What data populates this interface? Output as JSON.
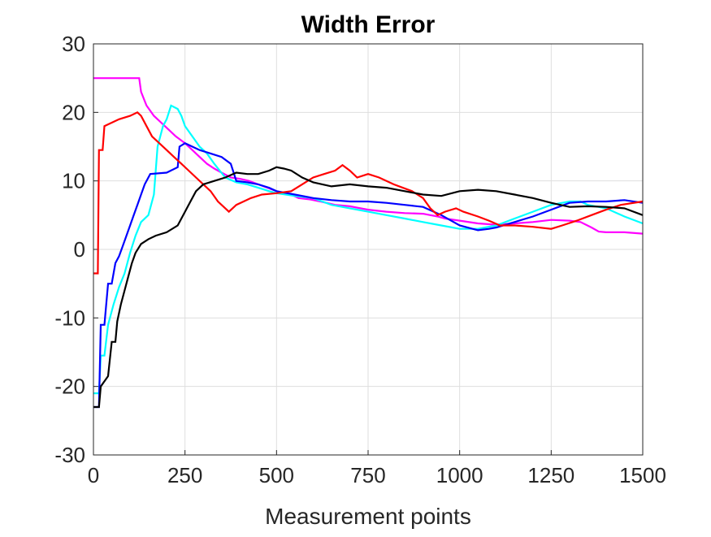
{
  "chart_data": {
    "type": "line",
    "title": "Width Error",
    "xlabel": "Measurement points",
    "ylabel": "",
    "xlim": [
      0,
      1500
    ],
    "ylim": [
      -30,
      30
    ],
    "xticks": [
      0,
      250,
      500,
      750,
      1000,
      1250,
      1500
    ],
    "yticks": [
      30,
      20,
      10,
      0,
      -10,
      -20,
      -30
    ],
    "xtick_labels": [
      "0",
      "250",
      "500",
      "750",
      "1000",
      "1250",
      "1500"
    ],
    "ytick_labels": [
      "30",
      "20",
      "10",
      "0",
      "-10",
      "-20",
      "-30"
    ],
    "grid": true,
    "legend": "none",
    "series": [
      {
        "color": "#ff00ff",
        "points": [
          [
            0,
            25
          ],
          [
            60,
            25
          ],
          [
            125,
            25
          ],
          [
            130,
            23
          ],
          [
            145,
            21
          ],
          [
            165,
            19.5
          ],
          [
            185,
            18.5
          ],
          [
            205,
            17.5
          ],
          [
            225,
            16.5
          ],
          [
            250,
            15.5
          ],
          [
            270,
            14.5
          ],
          [
            290,
            13.5
          ],
          [
            310,
            12.5
          ],
          [
            330,
            11.8
          ],
          [
            350,
            11.2
          ],
          [
            375,
            10.5
          ],
          [
            400,
            10.3
          ],
          [
            425,
            10
          ],
          [
            450,
            9.5
          ],
          [
            475,
            9
          ],
          [
            500,
            8.5
          ],
          [
            520,
            8.2
          ],
          [
            540,
            8
          ],
          [
            560,
            7.5
          ],
          [
            590,
            7.3
          ],
          [
            620,
            7
          ],
          [
            660,
            6.5
          ],
          [
            700,
            6.3
          ],
          [
            750,
            5.8
          ],
          [
            800,
            5.5
          ],
          [
            850,
            5.3
          ],
          [
            900,
            5.2
          ],
          [
            920,
            5
          ],
          [
            940,
            4.8
          ],
          [
            960,
            4.5
          ],
          [
            1000,
            4.2
          ],
          [
            1050,
            3.8
          ],
          [
            1100,
            3.6
          ],
          [
            1150,
            3.8
          ],
          [
            1200,
            4
          ],
          [
            1250,
            4.3
          ],
          [
            1300,
            4.2
          ],
          [
            1330,
            4
          ],
          [
            1360,
            3.2
          ],
          [
            1380,
            2.6
          ],
          [
            1400,
            2.5
          ],
          [
            1450,
            2.5
          ],
          [
            1500,
            2.3
          ]
        ]
      },
      {
        "color": "#00ffff",
        "points": [
          [
            0,
            -21
          ],
          [
            15,
            -21
          ],
          [
            20,
            -15.5
          ],
          [
            30,
            -15.5
          ],
          [
            40,
            -11
          ],
          [
            55,
            -8
          ],
          [
            70,
            -5.5
          ],
          [
            85,
            -3.5
          ],
          [
            100,
            -0.5
          ],
          [
            115,
            2
          ],
          [
            130,
            4
          ],
          [
            150,
            5
          ],
          [
            165,
            8
          ],
          [
            175,
            15
          ],
          [
            190,
            18
          ],
          [
            200,
            19
          ],
          [
            212,
            21
          ],
          [
            230,
            20.5
          ],
          [
            240,
            19.5
          ],
          [
            250,
            18
          ],
          [
            270,
            16.5
          ],
          [
            290,
            15
          ],
          [
            310,
            14
          ],
          [
            330,
            12.5
          ],
          [
            360,
            10.5
          ],
          [
            390,
            9.8
          ],
          [
            420,
            9.5
          ],
          [
            450,
            9
          ],
          [
            480,
            8.5
          ],
          [
            500,
            8.2
          ],
          [
            550,
            7.8
          ],
          [
            600,
            7.5
          ],
          [
            650,
            6.5
          ],
          [
            700,
            6
          ],
          [
            750,
            5.5
          ],
          [
            800,
            5
          ],
          [
            850,
            4.5
          ],
          [
            900,
            4
          ],
          [
            950,
            3.5
          ],
          [
            1000,
            3
          ],
          [
            1050,
            3
          ],
          [
            1100,
            3.5
          ],
          [
            1150,
            4.5
          ],
          [
            1200,
            5.5
          ],
          [
            1250,
            6.5
          ],
          [
            1300,
            7
          ],
          [
            1330,
            7
          ],
          [
            1350,
            6.5
          ],
          [
            1400,
            6
          ],
          [
            1450,
            4.8
          ],
          [
            1500,
            3.8
          ]
        ]
      },
      {
        "color": "#0000ff",
        "points": [
          [
            0,
            -23
          ],
          [
            15,
            -23
          ],
          [
            20,
            -11
          ],
          [
            30,
            -11
          ],
          [
            40,
            -5
          ],
          [
            50,
            -5
          ],
          [
            60,
            -2
          ],
          [
            70,
            -1
          ],
          [
            80,
            0.5
          ],
          [
            90,
            2
          ],
          [
            100,
            3.5
          ],
          [
            110,
            5
          ],
          [
            120,
            6.5
          ],
          [
            130,
            8
          ],
          [
            140,
            9.5
          ],
          [
            155,
            11
          ],
          [
            200,
            11.2
          ],
          [
            230,
            12
          ],
          [
            235,
            15
          ],
          [
            250,
            15.5
          ],
          [
            270,
            15
          ],
          [
            290,
            14.5
          ],
          [
            320,
            14
          ],
          [
            350,
            13.5
          ],
          [
            375,
            12.5
          ],
          [
            390,
            10
          ],
          [
            420,
            9.8
          ],
          [
            450,
            9.5
          ],
          [
            480,
            9
          ],
          [
            500,
            8.5
          ],
          [
            550,
            8
          ],
          [
            600,
            7.5
          ],
          [
            650,
            7.2
          ],
          [
            700,
            7
          ],
          [
            750,
            7
          ],
          [
            800,
            6.8
          ],
          [
            850,
            6.5
          ],
          [
            900,
            6.2
          ],
          [
            950,
            5
          ],
          [
            1000,
            3.5
          ],
          [
            1050,
            2.8
          ],
          [
            1080,
            3
          ],
          [
            1100,
            3.2
          ],
          [
            1150,
            4
          ],
          [
            1200,
            4.8
          ],
          [
            1250,
            5.8
          ],
          [
            1300,
            6.8
          ],
          [
            1350,
            7
          ],
          [
            1400,
            7
          ],
          [
            1450,
            7.2
          ],
          [
            1500,
            6.8
          ]
        ]
      },
      {
        "color": "#ff0000",
        "points": [
          [
            0,
            -3.5
          ],
          [
            12,
            -3.5
          ],
          [
            15,
            14.5
          ],
          [
            25,
            14.5
          ],
          [
            30,
            18
          ],
          [
            50,
            18.5
          ],
          [
            70,
            19
          ],
          [
            100,
            19.5
          ],
          [
            120,
            20
          ],
          [
            130,
            19.5
          ],
          [
            145,
            18
          ],
          [
            160,
            16.5
          ],
          [
            180,
            15.5
          ],
          [
            200,
            14.5
          ],
          [
            220,
            13.5
          ],
          [
            240,
            12.5
          ],
          [
            260,
            11.5
          ],
          [
            280,
            10.5
          ],
          [
            300,
            9.5
          ],
          [
            320,
            8.5
          ],
          [
            340,
            7
          ],
          [
            370,
            5.5
          ],
          [
            390,
            6.5
          ],
          [
            410,
            7
          ],
          [
            430,
            7.5
          ],
          [
            460,
            8
          ],
          [
            500,
            8.2
          ],
          [
            540,
            8.5
          ],
          [
            570,
            9.5
          ],
          [
            600,
            10.5
          ],
          [
            630,
            11
          ],
          [
            660,
            11.5
          ],
          [
            680,
            12.3
          ],
          [
            700,
            11.5
          ],
          [
            720,
            10.5
          ],
          [
            750,
            11
          ],
          [
            780,
            10.5
          ],
          [
            820,
            9.5
          ],
          [
            870,
            8.5
          ],
          [
            900,
            7.5
          ],
          [
            920,
            6
          ],
          [
            940,
            5
          ],
          [
            960,
            5.5
          ],
          [
            990,
            6
          ],
          [
            1010,
            5.5
          ],
          [
            1050,
            4.8
          ],
          [
            1080,
            4.2
          ],
          [
            1110,
            3.5
          ],
          [
            1150,
            3.5
          ],
          [
            1200,
            3.3
          ],
          [
            1250,
            3
          ],
          [
            1280,
            3.5
          ],
          [
            1320,
            4.2
          ],
          [
            1360,
            5
          ],
          [
            1400,
            5.8
          ],
          [
            1440,
            6.5
          ],
          [
            1500,
            7
          ]
        ]
      },
      {
        "color": "#000000",
        "points": [
          [
            0,
            -23
          ],
          [
            15,
            -23
          ],
          [
            20,
            -20
          ],
          [
            40,
            -18.5
          ],
          [
            50,
            -13.5
          ],
          [
            60,
            -13.5
          ],
          [
            65,
            -10.5
          ],
          [
            75,
            -8
          ],
          [
            85,
            -6
          ],
          [
            95,
            -4
          ],
          [
            105,
            -2
          ],
          [
            115,
            -0.5
          ],
          [
            130,
            0.8
          ],
          [
            150,
            1.5
          ],
          [
            170,
            2
          ],
          [
            200,
            2.5
          ],
          [
            230,
            3.5
          ],
          [
            250,
            5.5
          ],
          [
            265,
            7
          ],
          [
            280,
            8.5
          ],
          [
            300,
            9.5
          ],
          [
            330,
            10
          ],
          [
            360,
            10.5
          ],
          [
            390,
            11.2
          ],
          [
            420,
            11
          ],
          [
            450,
            11
          ],
          [
            480,
            11.5
          ],
          [
            500,
            12
          ],
          [
            520,
            11.8
          ],
          [
            540,
            11.5
          ],
          [
            570,
            10.5
          ],
          [
            600,
            9.8
          ],
          [
            650,
            9.2
          ],
          [
            700,
            9.5
          ],
          [
            750,
            9.2
          ],
          [
            800,
            9
          ],
          [
            850,
            8.5
          ],
          [
            900,
            8
          ],
          [
            950,
            7.8
          ],
          [
            1000,
            8.5
          ],
          [
            1050,
            8.7
          ],
          [
            1100,
            8.5
          ],
          [
            1150,
            8
          ],
          [
            1200,
            7.5
          ],
          [
            1250,
            6.8
          ],
          [
            1300,
            6.2
          ],
          [
            1350,
            6.3
          ],
          [
            1400,
            6.2
          ],
          [
            1450,
            6
          ],
          [
            1500,
            5
          ]
        ]
      }
    ]
  }
}
